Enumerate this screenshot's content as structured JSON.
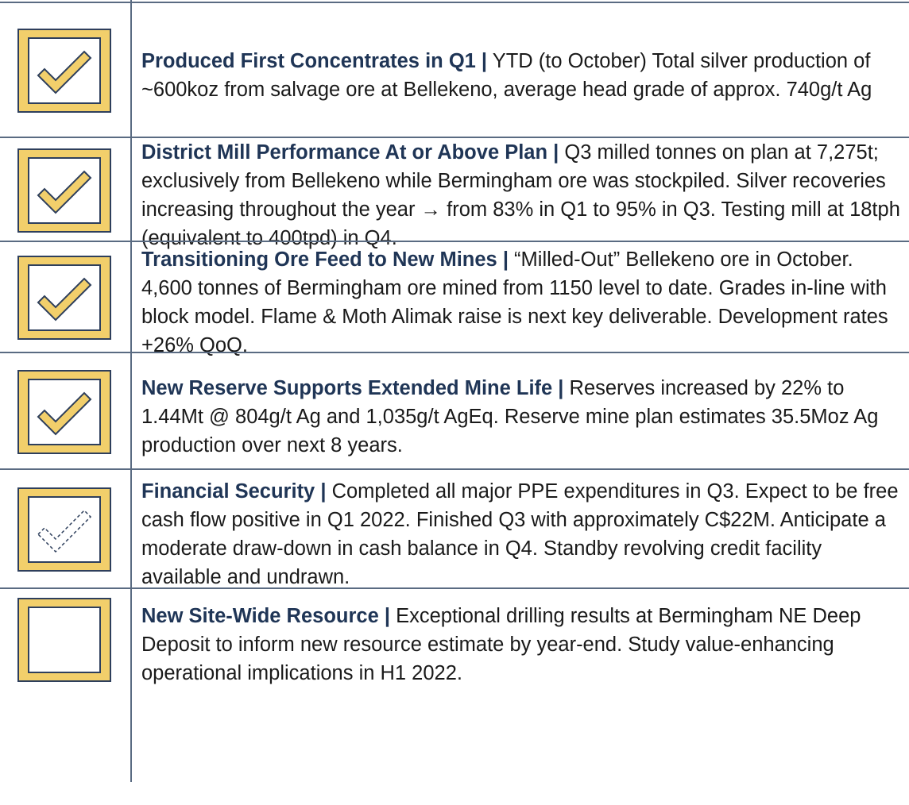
{
  "items": [
    {
      "title": "Produced First Concentrates in Q1 |",
      "text": "YTD (to October) Total silver production of ~600koz from salvage ore at Bellekeno, average head grade of approx. 740g/t Ag"
    },
    {
      "title": "District Mill Performance At or Above Plan |",
      "text": "Q3 milled tonnes on plan at 7,275t; exclusively from Bellekeno while Bermingham ore was stockpiled.  Silver recoveries increasing throughout the year → from 83% in Q1 to 95% in Q3.  Testing mill at 18tph (equivalent to 400tpd) in Q4."
    },
    {
      "title": "Transitioning Ore Feed to New Mines |",
      "text": "“Milled-Out” Bellekeno ore in October.  4,600 tonnes of Bermingham ore mined from 1150 level to date. Grades in-line with block model. Flame & Moth Alimak raise is next key deliverable. Development rates +26% QoQ."
    },
    {
      "title": "New Reserve Supports Extended Mine Life |",
      "text": "Reserves increased by 22% to 1.44Mt @ 804g/t Ag and 1,035g/t AgEq. Reserve mine plan estimates 35.5Moz Ag production over next 8 years."
    },
    {
      "title": "Financial Security |",
      "text": "Completed all major PPE expenditures in Q3. Expect to be free cash flow positive in Q1 2022. Finished Q3 with approximately C$22M.  Anticipate a moderate draw-down in cash balance in Q4. Standby revolving credit facility available and undrawn."
    },
    {
      "title": "New Site-Wide Resource |",
      "text": "Exceptional drilling results at Bermingham NE Deep Deposit to inform new resource estimate by year-end.  Study value-enhancing operational implications in H1 2022."
    }
  ]
}
